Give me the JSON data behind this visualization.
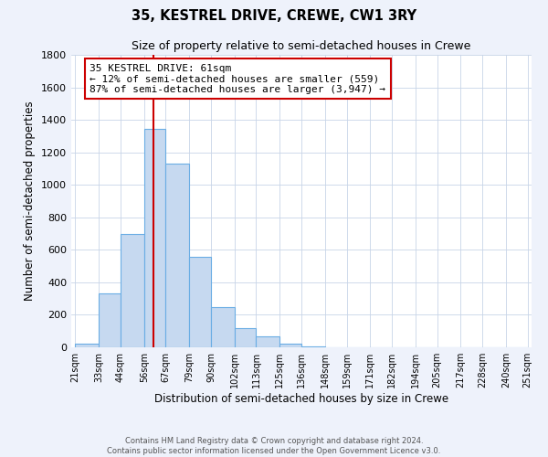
{
  "title": "35, KESTREL DRIVE, CREWE, CW1 3RY",
  "subtitle": "Size of property relative to semi-detached houses in Crewe",
  "xlabel": "Distribution of semi-detached houses by size in Crewe",
  "ylabel": "Number of semi-detached properties",
  "bar_edges": [
    21,
    33,
    44,
    56,
    67,
    79,
    90,
    102,
    113,
    125,
    136,
    148,
    159,
    171,
    182,
    194,
    205,
    217,
    228,
    240,
    251
  ],
  "bar_heights": [
    25,
    330,
    700,
    1345,
    1130,
    555,
    245,
    120,
    68,
    25,
    5,
    0,
    0,
    0,
    0,
    0,
    0,
    0,
    0,
    0
  ],
  "bar_color": "#c6d9f0",
  "bar_edgecolor": "#6aade4",
  "property_value": 61,
  "property_line_color": "#cc0000",
  "annotation_title": "35 KESTREL DRIVE: 61sqm",
  "annotation_line1": "← 12% of semi-detached houses are smaller (559)",
  "annotation_line2": "87% of semi-detached houses are larger (3,947) →",
  "annotation_box_edgecolor": "#cc0000",
  "ylim": [
    0,
    1800
  ],
  "yticks": [
    0,
    200,
    400,
    600,
    800,
    1000,
    1200,
    1400,
    1600,
    1800
  ],
  "tick_labels": [
    "21sqm",
    "33sqm",
    "44sqm",
    "56sqm",
    "67sqm",
    "79sqm",
    "90sqm",
    "102sqm",
    "113sqm",
    "125sqm",
    "136sqm",
    "148sqm",
    "159sqm",
    "171sqm",
    "182sqm",
    "194sqm",
    "205sqm",
    "217sqm",
    "228sqm",
    "240sqm",
    "251sqm"
  ],
  "footer_line1": "Contains HM Land Registry data © Crown copyright and database right 2024.",
  "footer_line2": "Contains public sector information licensed under the Open Government Licence v3.0.",
  "background_color": "#eef2fb",
  "plot_background_color": "#ffffff"
}
